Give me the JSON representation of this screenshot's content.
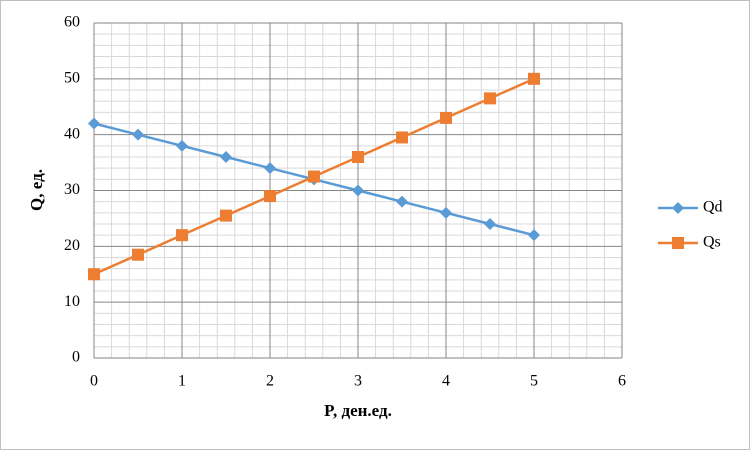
{
  "chart_data": {
    "type": "line",
    "x_label": "P, ден.ед.",
    "y_label": "Q, ед.",
    "x": [
      0,
      0.5,
      1,
      1.5,
      2,
      2.5,
      3,
      3.5,
      4,
      4.5,
      5
    ],
    "series": [
      {
        "name": "Qd",
        "color": "#5b9bd5",
        "marker": "diamond",
        "values": [
          42,
          40,
          38,
          36,
          34,
          32,
          30,
          28,
          26,
          24,
          22
        ]
      },
      {
        "name": "Qs",
        "color": "#ed7d31",
        "marker": "square",
        "values": [
          15,
          18.5,
          22,
          25.5,
          29,
          32.5,
          36,
          39.5,
          43,
          46.5,
          50
        ]
      }
    ],
    "xlim": [
      0,
      6
    ],
    "xticks": [
      0,
      1,
      2,
      3,
      4,
      5,
      6
    ],
    "ylim": [
      0,
      60
    ],
    "yticks": [
      0,
      10,
      20,
      30,
      40,
      50,
      60
    ],
    "grid": true,
    "minor_grid": true,
    "legend": "right"
  }
}
